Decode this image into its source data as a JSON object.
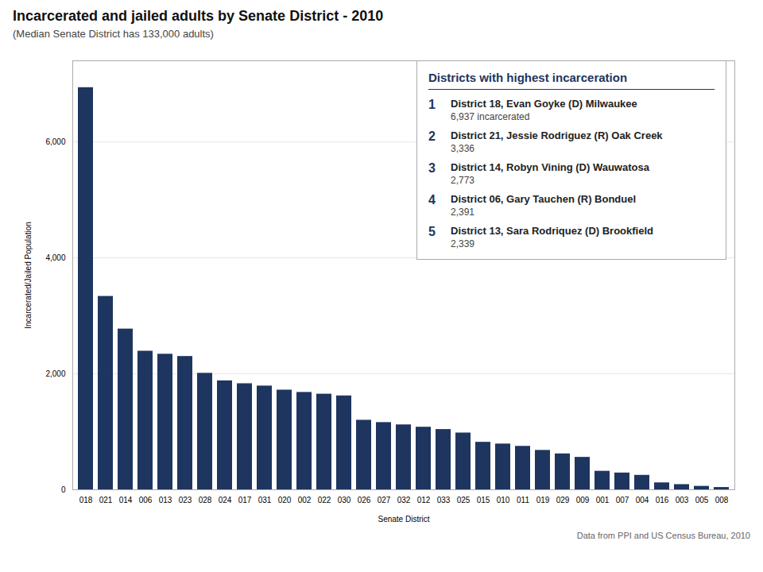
{
  "chart_data": {
    "type": "bar",
    "title": "Incarcerated and jailed adults by Senate District - 2010",
    "subtitle": "(Median Senate District has 133,000 adults)",
    "xlabel": "Senate District",
    "ylabel": "Incarcerated/Jailed Population",
    "source": "Data from PPI and US Census Bureau, 2010",
    "categories": [
      "018",
      "021",
      "014",
      "006",
      "013",
      "023",
      "028",
      "024",
      "017",
      "031",
      "020",
      "002",
      "022",
      "030",
      "026",
      "027",
      "032",
      "012",
      "033",
      "025",
      "015",
      "010",
      "011",
      "019",
      "029",
      "009",
      "001",
      "007",
      "004",
      "016",
      "003",
      "005",
      "008"
    ],
    "values": [
      6937,
      3336,
      2773,
      2391,
      2339,
      2300,
      2010,
      1880,
      1830,
      1790,
      1720,
      1680,
      1650,
      1620,
      1200,
      1160,
      1120,
      1080,
      1040,
      980,
      820,
      790,
      750,
      680,
      620,
      560,
      320,
      290,
      250,
      120,
      90,
      60,
      40
    ],
    "color": "#1e3560",
    "ylim": [
      0,
      7400
    ],
    "yticks": [
      0,
      {
        "value": 2000,
        "label": "2,000"
      },
      {
        "value": 4000,
        "label": "4,000"
      },
      {
        "value": 6000,
        "label": "6,000"
      }
    ],
    "grid": true,
    "legend_title": "Districts with highest incarceration",
    "legend_entries": [
      {
        "rank": "1",
        "district": "District 18, Evan Goyke (D) Milwaukee",
        "value": "6,937 incarcerated"
      },
      {
        "rank": "2",
        "district": "District 21, Jessie Rodriguez (R) Oak Creek",
        "value": "3,336"
      },
      {
        "rank": "3",
        "district": "District 14, Robyn Vining (D) Wauwatosa",
        "value": "2,773"
      },
      {
        "rank": "4",
        "district": "District 06, Gary Tauchen (R) Bonduel",
        "value": "2,391"
      },
      {
        "rank": "5",
        "district": "District 13, Sara Rodriquez (D) Brookfield",
        "value": "2,339"
      }
    ]
  }
}
